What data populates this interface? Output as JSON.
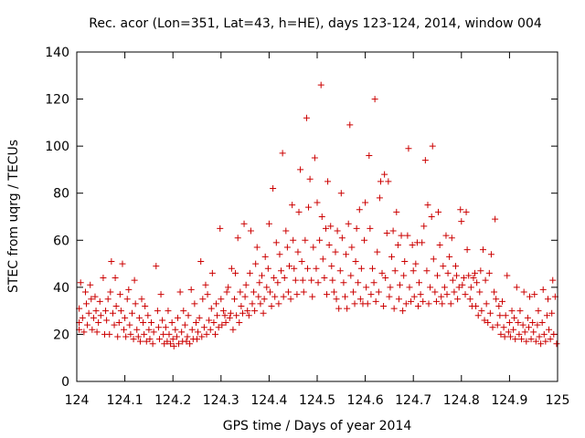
{
  "chart_data": {
    "type": "scatter",
    "title": "Rec. acor (Lon=351, Lat=43, h=HE), days 123-124, 2014, window 004",
    "xlabel": "GPS time / Days of year 2014",
    "ylabel": "STEC from uqrg / TECUs",
    "xlim": [
      124,
      125
    ],
    "ylim": [
      0,
      140
    ],
    "xticks": [
      "124",
      "124.1",
      "124.2",
      "124.3",
      "124.4",
      "124.5",
      "124.6",
      "124.7",
      "124.8",
      "124.9",
      "125"
    ],
    "yticks": [
      "0",
      "20",
      "40",
      "60",
      "80",
      "100",
      "120",
      "140"
    ],
    "marker": "+",
    "color": "#cc0000",
    "points": [
      [
        124.005,
        22
      ],
      [
        124.005,
        25
      ],
      [
        124.005,
        31
      ],
      [
        124.008,
        42
      ],
      [
        124.012,
        27
      ],
      [
        124.015,
        21
      ],
      [
        124.018,
        38
      ],
      [
        124.02,
        33
      ],
      [
        124.022,
        24
      ],
      [
        124.025,
        29
      ],
      [
        124.028,
        41
      ],
      [
        124.03,
        35
      ],
      [
        124.032,
        22
      ],
      [
        124.035,
        27
      ],
      [
        124.038,
        36
      ],
      [
        124.04,
        30
      ],
      [
        124.042,
        21
      ],
      [
        124.045,
        25
      ],
      [
        124.048,
        34
      ],
      [
        124.05,
        28
      ],
      [
        124.055,
        44
      ],
      [
        124.058,
        20
      ],
      [
        124.06,
        30
      ],
      [
        124.062,
        26
      ],
      [
        124.065,
        35
      ],
      [
        124.068,
        20
      ],
      [
        124.07,
        38
      ],
      [
        124.072,
        51
      ],
      [
        124.075,
        29
      ],
      [
        124.078,
        24
      ],
      [
        124.08,
        44
      ],
      [
        124.082,
        32
      ],
      [
        124.085,
        19
      ],
      [
        124.088,
        25
      ],
      [
        124.09,
        37
      ],
      [
        124.092,
        30
      ],
      [
        124.095,
        50
      ],
      [
        124.098,
        22
      ],
      [
        124.1,
        27
      ],
      [
        124.102,
        19
      ],
      [
        124.105,
        35
      ],
      [
        124.108,
        39
      ],
      [
        124.11,
        24
      ],
      [
        124.112,
        20
      ],
      [
        124.115,
        29
      ],
      [
        124.118,
        18
      ],
      [
        124.12,
        43
      ],
      [
        124.122,
        33
      ],
      [
        124.125,
        22
      ],
      [
        124.128,
        19
      ],
      [
        124.13,
        27
      ],
      [
        124.132,
        17
      ],
      [
        124.135,
        35
      ],
      [
        124.138,
        25
      ],
      [
        124.14,
        20
      ],
      [
        124.142,
        32
      ],
      [
        124.145,
        17
      ],
      [
        124.148,
        28
      ],
      [
        124.15,
        22
      ],
      [
        124.152,
        18
      ],
      [
        124.155,
        25
      ],
      [
        124.158,
        16
      ],
      [
        124.16,
        21
      ],
      [
        124.165,
        49
      ],
      [
        124.168,
        30
      ],
      [
        124.17,
        23
      ],
      [
        124.172,
        18
      ],
      [
        124.175,
        37
      ],
      [
        124.178,
        26
      ],
      [
        124.18,
        20
      ],
      [
        124.182,
        16
      ],
      [
        124.185,
        23
      ],
      [
        124.188,
        17
      ],
      [
        124.19,
        30
      ],
      [
        124.192,
        20
      ],
      [
        124.195,
        16
      ],
      [
        124.198,
        25
      ],
      [
        124.2,
        18
      ],
      [
        124.202,
        15
      ],
      [
        124.205,
        22
      ],
      [
        124.208,
        19
      ],
      [
        124.21,
        27
      ],
      [
        124.212,
        16
      ],
      [
        124.215,
        38
      ],
      [
        124.218,
        21
      ],
      [
        124.22,
        17
      ],
      [
        124.222,
        30
      ],
      [
        124.225,
        24
      ],
      [
        124.228,
        17
      ],
      [
        124.23,
        19
      ],
      [
        124.232,
        28
      ],
      [
        124.235,
        16
      ],
      [
        124.238,
        39
      ],
      [
        124.24,
        22
      ],
      [
        124.242,
        18
      ],
      [
        124.245,
        33
      ],
      [
        124.248,
        25
      ],
      [
        124.25,
        18
      ],
      [
        124.252,
        21
      ],
      [
        124.255,
        27
      ],
      [
        124.258,
        51
      ],
      [
        124.26,
        19
      ],
      [
        124.262,
        35
      ],
      [
        124.265,
        23
      ],
      [
        124.268,
        41
      ],
      [
        124.27,
        20
      ],
      [
        124.272,
        37
      ],
      [
        124.275,
        26
      ],
      [
        124.278,
        22
      ],
      [
        124.28,
        31
      ],
      [
        124.282,
        46
      ],
      [
        124.285,
        25
      ],
      [
        124.288,
        20
      ],
      [
        124.29,
        33
      ],
      [
        124.292,
        28
      ],
      [
        124.295,
        23
      ],
      [
        124.298,
        65
      ],
      [
        124.3,
        35
      ],
      [
        124.302,
        24
      ],
      [
        124.305,
        30
      ],
      [
        124.308,
        28
      ],
      [
        124.31,
        25
      ],
      [
        124.312,
        38
      ],
      [
        124.315,
        40
      ],
      [
        124.318,
        27
      ],
      [
        124.32,
        29
      ],
      [
        124.322,
        48
      ],
      [
        124.325,
        22
      ],
      [
        124.328,
        35
      ],
      [
        124.33,
        46
      ],
      [
        124.332,
        28
      ],
      [
        124.335,
        61
      ],
      [
        124.338,
        25
      ],
      [
        124.34,
        38
      ],
      [
        124.342,
        32
      ],
      [
        124.345,
        29
      ],
      [
        124.348,
        67
      ],
      [
        124.35,
        36
      ],
      [
        124.352,
        41
      ],
      [
        124.355,
        30
      ],
      [
        124.358,
        28
      ],
      [
        124.36,
        46
      ],
      [
        124.362,
        64
      ],
      [
        124.365,
        33
      ],
      [
        124.368,
        38
      ],
      [
        124.37,
        30
      ],
      [
        124.372,
        50
      ],
      [
        124.375,
        57
      ],
      [
        124.378,
        36
      ],
      [
        124.38,
        42
      ],
      [
        124.382,
        33
      ],
      [
        124.385,
        45
      ],
      [
        124.388,
        29
      ],
      [
        124.39,
        35
      ],
      [
        124.392,
        53
      ],
      [
        124.395,
        40
      ],
      [
        124.398,
        48
      ],
      [
        124.4,
        67
      ],
      [
        124.402,
        38
      ],
      [
        124.405,
        32
      ],
      [
        124.408,
        82
      ],
      [
        124.41,
        44
      ],
      [
        124.412,
        36
      ],
      [
        124.415,
        59
      ],
      [
        124.418,
        42
      ],
      [
        124.42,
        33
      ],
      [
        124.422,
        54
      ],
      [
        124.425,
        47
      ],
      [
        124.428,
        97
      ],
      [
        124.43,
        36
      ],
      [
        124.432,
        44
      ],
      [
        124.435,
        64
      ],
      [
        124.438,
        57
      ],
      [
        124.44,
        38
      ],
      [
        124.442,
        49
      ],
      [
        124.445,
        35
      ],
      [
        124.448,
        75
      ],
      [
        124.45,
        60
      ],
      [
        124.452,
        48
      ],
      [
        124.455,
        43
      ],
      [
        124.458,
        37
      ],
      [
        124.46,
        55
      ],
      [
        124.462,
        72
      ],
      [
        124.465,
        90
      ],
      [
        124.468,
        51
      ],
      [
        124.47,
        43
      ],
      [
        124.472,
        38
      ],
      [
        124.475,
        60
      ],
      [
        124.478,
        112
      ],
      [
        124.48,
        48
      ],
      [
        124.482,
        74
      ],
      [
        124.485,
        86
      ],
      [
        124.488,
        43
      ],
      [
        124.49,
        36
      ],
      [
        124.492,
        57
      ],
      [
        124.495,
        95
      ],
      [
        124.498,
        48
      ],
      [
        124.5,
        76
      ],
      [
        124.502,
        42
      ],
      [
        124.505,
        60
      ],
      [
        124.508,
        126
      ],
      [
        124.51,
        70
      ],
      [
        124.512,
        52
      ],
      [
        124.515,
        44
      ],
      [
        124.518,
        65
      ],
      [
        124.52,
        37
      ],
      [
        124.522,
        85
      ],
      [
        124.525,
        58
      ],
      [
        124.528,
        66
      ],
      [
        124.53,
        49
      ],
      [
        124.532,
        43
      ],
      [
        124.535,
        38
      ],
      [
        124.538,
        55
      ],
      [
        124.54,
        35
      ],
      [
        124.542,
        64
      ],
      [
        124.545,
        31
      ],
      [
        124.548,
        47
      ],
      [
        124.55,
        80
      ],
      [
        124.552,
        61
      ],
      [
        124.555,
        42
      ],
      [
        124.558,
        36
      ],
      [
        124.56,
        54
      ],
      [
        124.562,
        31
      ],
      [
        124.565,
        67
      ],
      [
        124.568,
        109
      ],
      [
        124.57,
        45
      ],
      [
        124.572,
        57
      ],
      [
        124.575,
        38
      ],
      [
        124.578,
        33
      ],
      [
        124.58,
        51
      ],
      [
        124.582,
        65
      ],
      [
        124.585,
        42
      ],
      [
        124.588,
        73
      ],
      [
        124.59,
        35
      ],
      [
        124.592,
        48
      ],
      [
        124.595,
        33
      ],
      [
        124.598,
        60
      ],
      [
        124.6,
        76
      ],
      [
        124.602,
        40
      ],
      [
        124.605,
        33
      ],
      [
        124.608,
        96
      ],
      [
        124.61,
        65
      ],
      [
        124.612,
        37
      ],
      [
        124.615,
        48
      ],
      [
        124.618,
        42
      ],
      [
        124.62,
        120
      ],
      [
        124.622,
        34
      ],
      [
        124.625,
        55
      ],
      [
        124.628,
        38
      ],
      [
        124.63,
        78
      ],
      [
        124.632,
        85
      ],
      [
        124.635,
        46
      ],
      [
        124.638,
        32
      ],
      [
        124.64,
        88
      ],
      [
        124.642,
        44
      ],
      [
        124.645,
        63
      ],
      [
        124.648,
        85
      ],
      [
        124.65,
        36
      ],
      [
        124.652,
        40
      ],
      [
        124.655,
        53
      ],
      [
        124.658,
        64
      ],
      [
        124.66,
        31
      ],
      [
        124.662,
        47
      ],
      [
        124.665,
        72
      ],
      [
        124.668,
        58
      ],
      [
        124.67,
        35
      ],
      [
        124.672,
        41
      ],
      [
        124.675,
        62
      ],
      [
        124.678,
        30
      ],
      [
        124.68,
        45
      ],
      [
        124.682,
        51
      ],
      [
        124.685,
        33
      ],
      [
        124.688,
        62
      ],
      [
        124.69,
        99
      ],
      [
        124.692,
        40
      ],
      [
        124.695,
        34
      ],
      [
        124.698,
        58
      ],
      [
        124.7,
        47
      ],
      [
        124.702,
        36
      ],
      [
        124.705,
        50
      ],
      [
        124.708,
        59
      ],
      [
        124.71,
        32
      ],
      [
        124.712,
        42
      ],
      [
        124.715,
        37
      ],
      [
        124.718,
        59
      ],
      [
        124.72,
        34
      ],
      [
        124.722,
        66
      ],
      [
        124.725,
        94
      ],
      [
        124.728,
        47
      ],
      [
        124.73,
        75
      ],
      [
        124.732,
        33
      ],
      [
        124.735,
        40
      ],
      [
        124.738,
        70
      ],
      [
        124.74,
        100
      ],
      [
        124.742,
        52
      ],
      [
        124.745,
        38
      ],
      [
        124.748,
        34
      ],
      [
        124.75,
        45
      ],
      [
        124.752,
        72
      ],
      [
        124.755,
        58
      ],
      [
        124.758,
        36
      ],
      [
        124.76,
        33
      ],
      [
        124.762,
        49
      ],
      [
        124.765,
        40
      ],
      [
        124.768,
        62
      ],
      [
        124.77,
        37
      ],
      [
        124.772,
        46
      ],
      [
        124.775,
        53
      ],
      [
        124.778,
        33
      ],
      [
        124.78,
        61
      ],
      [
        124.782,
        43
      ],
      [
        124.785,
        38
      ],
      [
        124.788,
        49
      ],
      [
        124.79,
        45
      ],
      [
        124.792,
        35
      ],
      [
        124.795,
        40
      ],
      [
        124.798,
        73
      ],
      [
        124.8,
        68
      ],
      [
        124.802,
        41
      ],
      [
        124.805,
        44
      ],
      [
        124.808,
        37
      ],
      [
        124.81,
        72
      ],
      [
        124.812,
        56
      ],
      [
        124.815,
        45
      ],
      [
        124.818,
        35
      ],
      [
        124.82,
        40
      ],
      [
        124.822,
        32
      ],
      [
        124.825,
        44
      ],
      [
        124.828,
        46
      ],
      [
        124.83,
        32
      ],
      [
        124.832,
        42
      ],
      [
        124.835,
        28
      ],
      [
        124.838,
        38
      ],
      [
        124.84,
        47
      ],
      [
        124.842,
        30
      ],
      [
        124.845,
        56
      ],
      [
        124.848,
        26
      ],
      [
        124.85,
        43
      ],
      [
        124.852,
        33
      ],
      [
        124.855,
        25
      ],
      [
        124.858,
        46
      ],
      [
        124.86,
        29
      ],
      [
        124.862,
        54
      ],
      [
        124.865,
        23
      ],
      [
        124.868,
        38
      ],
      [
        124.87,
        69
      ],
      [
        124.872,
        35
      ],
      [
        124.875,
        24
      ],
      [
        124.878,
        32
      ],
      [
        124.88,
        28
      ],
      [
        124.882,
        20
      ],
      [
        124.885,
        34
      ],
      [
        124.888,
        23
      ],
      [
        124.89,
        19
      ],
      [
        124.892,
        28
      ],
      [
        124.895,
        45
      ],
      [
        124.898,
        21
      ],
      [
        124.9,
        25
      ],
      [
        124.902,
        19
      ],
      [
        124.905,
        30
      ],
      [
        124.908,
        22
      ],
      [
        124.91,
        27
      ],
      [
        124.912,
        18
      ],
      [
        124.915,
        40
      ],
      [
        124.918,
        25
      ],
      [
        124.92,
        20
      ],
      [
        124.922,
        30
      ],
      [
        124.925,
        18
      ],
      [
        124.928,
        24
      ],
      [
        124.93,
        38
      ],
      [
        124.932,
        21
      ],
      [
        124.935,
        17
      ],
      [
        124.938,
        27
      ],
      [
        124.94,
        23
      ],
      [
        124.942,
        36
      ],
      [
        124.945,
        18
      ],
      [
        124.948,
        25
      ],
      [
        124.95,
        21
      ],
      [
        124.952,
        37
      ],
      [
        124.955,
        17
      ],
      [
        124.958,
        24
      ],
      [
        124.96,
        30
      ],
      [
        124.962,
        19
      ],
      [
        124.965,
        16
      ],
      [
        124.968,
        25
      ],
      [
        124.97,
        39
      ],
      [
        124.972,
        20
      ],
      [
        124.975,
        17
      ],
      [
        124.978,
        28
      ],
      [
        124.98,
        35
      ],
      [
        124.982,
        22
      ],
      [
        124.985,
        18
      ],
      [
        124.988,
        29
      ],
      [
        124.99,
        43
      ],
      [
        124.992,
        20
      ],
      [
        124.995,
        36
      ],
      [
        124.998,
        16
      ]
    ]
  }
}
